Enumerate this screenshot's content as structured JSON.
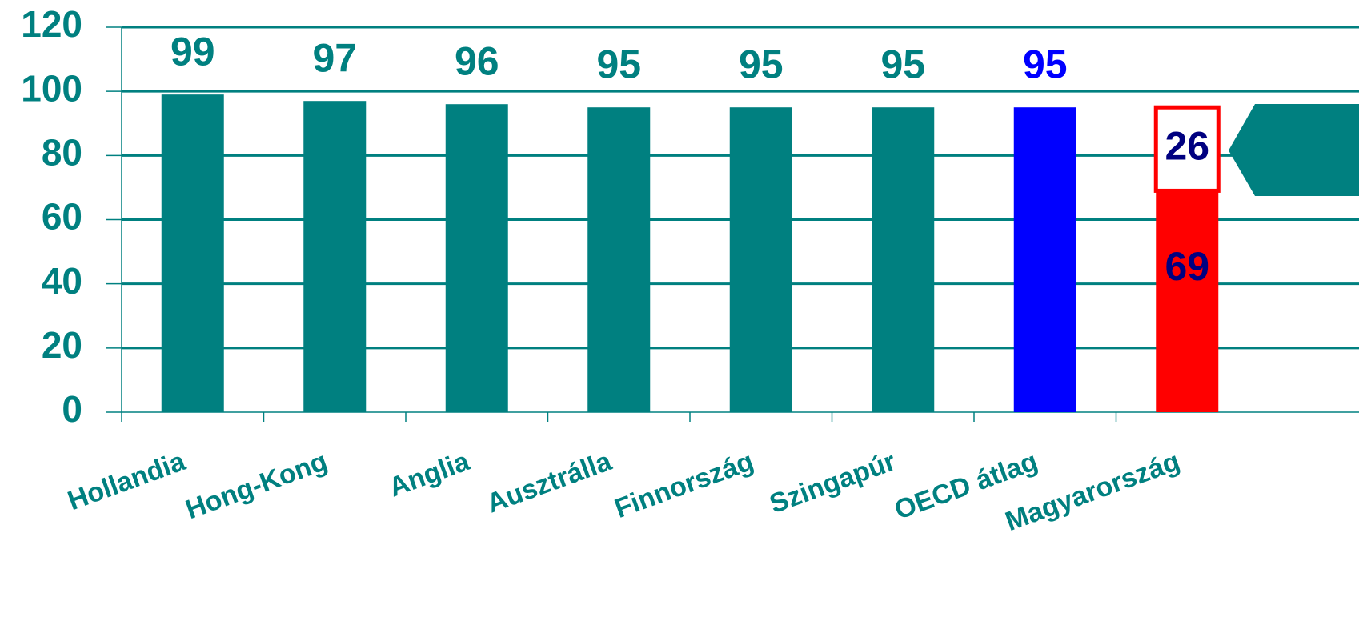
{
  "chart_data": {
    "type": "bar",
    "categories": [
      "Hollandia",
      "Hong-Kong",
      "Anglia",
      "Ausztrálla",
      "Finnország",
      "Szingapúr",
      "OECD átlag",
      "Magyarország"
    ],
    "series": [
      {
        "values": [
          99,
          97,
          96,
          95,
          95,
          95,
          95,
          69
        ],
        "colors": [
          "#008080",
          "#008080",
          "#008080",
          "#008080",
          "#008080",
          "#008080",
          "#0000ff",
          "#ff0000"
        ],
        "label_colors": [
          "#008080",
          "#008080",
          "#008080",
          "#008080",
          "#008080",
          "#008080",
          "#0000ff",
          "#000080"
        ]
      },
      {
        "values": [
          null,
          null,
          null,
          null,
          null,
          null,
          null,
          26
        ],
        "color": "#ffffff",
        "border_color": "#ff0000",
        "label_colors": [
          null,
          null,
          null,
          null,
          null,
          null,
          null,
          "#000080"
        ]
      }
    ],
    "ylim": [
      0,
      120
    ],
    "yticks": [
      0,
      20,
      40,
      60,
      80,
      100,
      120
    ],
    "grid": true
  }
}
